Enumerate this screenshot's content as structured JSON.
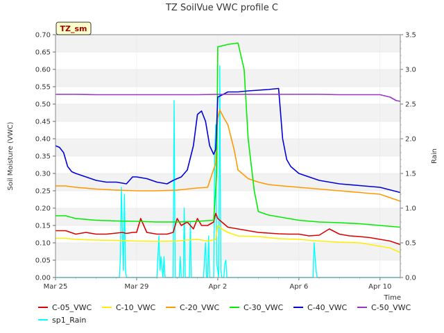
{
  "chart_data": {
    "type": "line",
    "title": "TZ SoilVue VWC profile C",
    "badge": "TZ_sm",
    "xlabel": "Time",
    "ylabel": "Soil Moisture (VWC)",
    "y2label": "Rain",
    "xlim": [
      0,
      17
    ],
    "ylim": [
      0,
      0.7
    ],
    "y2lim": [
      0,
      3.5
    ],
    "grid": true,
    "legend_position": "bottom",
    "x_ticks": [
      {
        "x": 0,
        "label": "Mar 25"
      },
      {
        "x": 4,
        "label": "Mar 29"
      },
      {
        "x": 8,
        "label": "Apr 2"
      },
      {
        "x": 12,
        "label": "Apr 6"
      },
      {
        "x": 16,
        "label": "Apr 10"
      }
    ],
    "y_ticks": [
      "0.00",
      "0.05",
      "0.10",
      "0.15",
      "0.20",
      "0.25",
      "0.30",
      "0.35",
      "0.40",
      "0.45",
      "0.50",
      "0.55",
      "0.60",
      "0.65",
      "0.70"
    ],
    "y2_ticks": [
      "0.0",
      "0.5",
      "1.0",
      "1.5",
      "2.0",
      "2.5",
      "3.0",
      "3.5"
    ],
    "series": [
      {
        "name": "C-05_VWC",
        "color": "#dd0000",
        "axis": "left",
        "x": [
          0,
          0.5,
          1,
          1.5,
          2,
          2.5,
          3,
          3.3,
          3.5,
          3.8,
          4,
          4.2,
          4.5,
          5,
          5.5,
          5.8,
          6,
          6.2,
          6.5,
          6.8,
          7,
          7.2,
          7.5,
          7.8,
          7.9,
          8,
          8.2,
          8.5,
          9,
          9.5,
          10,
          10.5,
          11,
          11.5,
          12,
          12.5,
          13,
          13.5,
          14,
          14.5,
          15,
          15.5,
          16,
          16.5,
          17
        ],
        "y": [
          0.135,
          0.135,
          0.125,
          0.13,
          0.125,
          0.125,
          0.128,
          0.13,
          0.127,
          0.13,
          0.13,
          0.17,
          0.13,
          0.125,
          0.125,
          0.13,
          0.17,
          0.15,
          0.16,
          0.14,
          0.17,
          0.15,
          0.15,
          0.16,
          0.185,
          0.17,
          0.16,
          0.145,
          0.14,
          0.135,
          0.13,
          0.128,
          0.126,
          0.125,
          0.125,
          0.12,
          0.122,
          0.14,
          0.125,
          0.12,
          0.118,
          0.115,
          0.11,
          0.105,
          0.095
        ]
      },
      {
        "name": "C-10_VWC",
        "color": "#ffee00",
        "axis": "left",
        "x": [
          0,
          0.5,
          1,
          2,
          3,
          4,
          5,
          6,
          6.5,
          7,
          7.5,
          7.9,
          8,
          8.2,
          8.5,
          9,
          10,
          11,
          12,
          13,
          14,
          15,
          16,
          16.5,
          17
        ],
        "y": [
          0.113,
          0.113,
          0.11,
          0.108,
          0.107,
          0.105,
          0.104,
          0.105,
          0.108,
          0.11,
          0.105,
          0.11,
          0.15,
          0.14,
          0.13,
          0.12,
          0.118,
          0.112,
          0.11,
          0.105,
          0.102,
          0.1,
          0.09,
          0.085,
          0.072
        ]
      },
      {
        "name": "C-20_VWC",
        "color": "#ff9900",
        "axis": "left",
        "x": [
          0,
          0.5,
          1,
          2,
          3,
          4,
          5,
          6,
          6.5,
          7,
          7.5,
          7.9,
          8,
          8.1,
          8.3,
          8.5,
          8.8,
          9,
          9.3,
          9.5,
          10,
          10.5,
          11,
          12,
          13,
          14,
          15,
          16,
          16.5,
          17
        ],
        "y": [
          0.264,
          0.264,
          0.26,
          0.255,
          0.252,
          0.25,
          0.25,
          0.252,
          0.255,
          0.258,
          0.26,
          0.33,
          0.46,
          0.483,
          0.46,
          0.44,
          0.37,
          0.31,
          0.295,
          0.285,
          0.275,
          0.268,
          0.265,
          0.26,
          0.255,
          0.25,
          0.245,
          0.24,
          0.23,
          0.22
        ]
      },
      {
        "name": "C-30_VWC",
        "color": "#00ee00",
        "axis": "left",
        "x": [
          0,
          0.5,
          1,
          2,
          3,
          4,
          5,
          6,
          7,
          7.8,
          7.95,
          8,
          8.5,
          9,
          9.3,
          9.5,
          9.8,
          10,
          10.5,
          11,
          12,
          13,
          14,
          15,
          16,
          17
        ],
        "y": [
          0.178,
          0.178,
          0.17,
          0.165,
          0.163,
          0.162,
          0.16,
          0.16,
          0.162,
          0.165,
          0.3,
          0.665,
          0.672,
          0.676,
          0.6,
          0.4,
          0.25,
          0.19,
          0.18,
          0.175,
          0.165,
          0.16,
          0.158,
          0.155,
          0.15,
          0.145
        ]
      },
      {
        "name": "C-40_VWC",
        "color": "#0000dd",
        "axis": "left",
        "x": [
          0,
          0.2,
          0.4,
          0.6,
          0.8,
          1,
          1.5,
          2,
          2.5,
          3,
          3.5,
          3.8,
          4,
          4.5,
          5,
          5.5,
          5.8,
          6,
          6.2,
          6.5,
          6.8,
          7,
          7.2,
          7.4,
          7.6,
          7.8,
          7.9,
          8,
          8.5,
          9,
          9.5,
          10,
          10.5,
          11,
          11.2,
          11.4,
          11.6,
          12,
          12.5,
          13,
          14,
          15,
          16,
          17
        ],
        "y": [
          0.38,
          0.375,
          0.36,
          0.32,
          0.305,
          0.3,
          0.29,
          0.28,
          0.275,
          0.275,
          0.27,
          0.29,
          0.29,
          0.285,
          0.275,
          0.27,
          0.28,
          0.285,
          0.29,
          0.31,
          0.38,
          0.47,
          0.48,
          0.45,
          0.38,
          0.355,
          0.37,
          0.52,
          0.535,
          0.535,
          0.538,
          0.54,
          0.542,
          0.545,
          0.4,
          0.34,
          0.32,
          0.3,
          0.29,
          0.28,
          0.27,
          0.265,
          0.26,
          0.245
        ]
      },
      {
        "name": "C-50_VWC",
        "color": "#9933cc",
        "axis": "left",
        "x": [
          0,
          1,
          2,
          3,
          4,
          5,
          6,
          7,
          8,
          9,
          10,
          11,
          12,
          13,
          14,
          15,
          16,
          16.5,
          16.8,
          17
        ],
        "y": [
          0.528,
          0.528,
          0.527,
          0.527,
          0.527,
          0.527,
          0.527,
          0.527,
          0.528,
          0.528,
          0.528,
          0.528,
          0.528,
          0.528,
          0.527,
          0.527,
          0.527,
          0.52,
          0.51,
          0.508
        ]
      },
      {
        "name": "sp1_Rain",
        "color": "#00ffff",
        "axis": "right",
        "x": [
          0,
          3.15,
          3.2,
          3.25,
          3.3,
          3.35,
          3.4,
          3.45,
          3.5,
          5,
          5.05,
          5.1,
          5.15,
          5.2,
          5.3,
          5.35,
          5.4,
          5.8,
          5.85,
          5.9,
          6.1,
          6.15,
          6.2,
          6.3,
          6.35,
          6.4,
          6.6,
          6.65,
          6.7,
          7.3,
          7.35,
          7.4,
          7.45,
          7.5,
          7.55,
          7.6,
          7.65,
          7.7,
          7.75,
          7.8,
          7.85,
          7.9,
          7.95,
          8.05,
          8.1,
          8.15,
          8.2,
          8.3,
          8.35,
          8.4,
          8.45,
          8.5,
          8.55,
          8.6,
          8.65,
          8.7,
          12.7,
          12.75,
          12.8,
          12.85,
          12.9,
          17
        ],
        "y": [
          0,
          0,
          0.3,
          1.3,
          0.6,
          0.1,
          1.2,
          0.1,
          0,
          0,
          0.3,
          0.6,
          0.1,
          0.3,
          0,
          0.3,
          0,
          0,
          2.55,
          0,
          0,
          0.3,
          0,
          0,
          1.0,
          0,
          0,
          0.8,
          0,
          0,
          0.3,
          0.5,
          0,
          0,
          0.6,
          0,
          0,
          0,
          0,
          0,
          1.8,
          2.2,
          0.2,
          0,
          3.05,
          0.1,
          0,
          0,
          0.2,
          0.25,
          0,
          0,
          0,
          0,
          0,
          0,
          0,
          0.5,
          0.3,
          0.1,
          0,
          0
        ]
      }
    ]
  }
}
